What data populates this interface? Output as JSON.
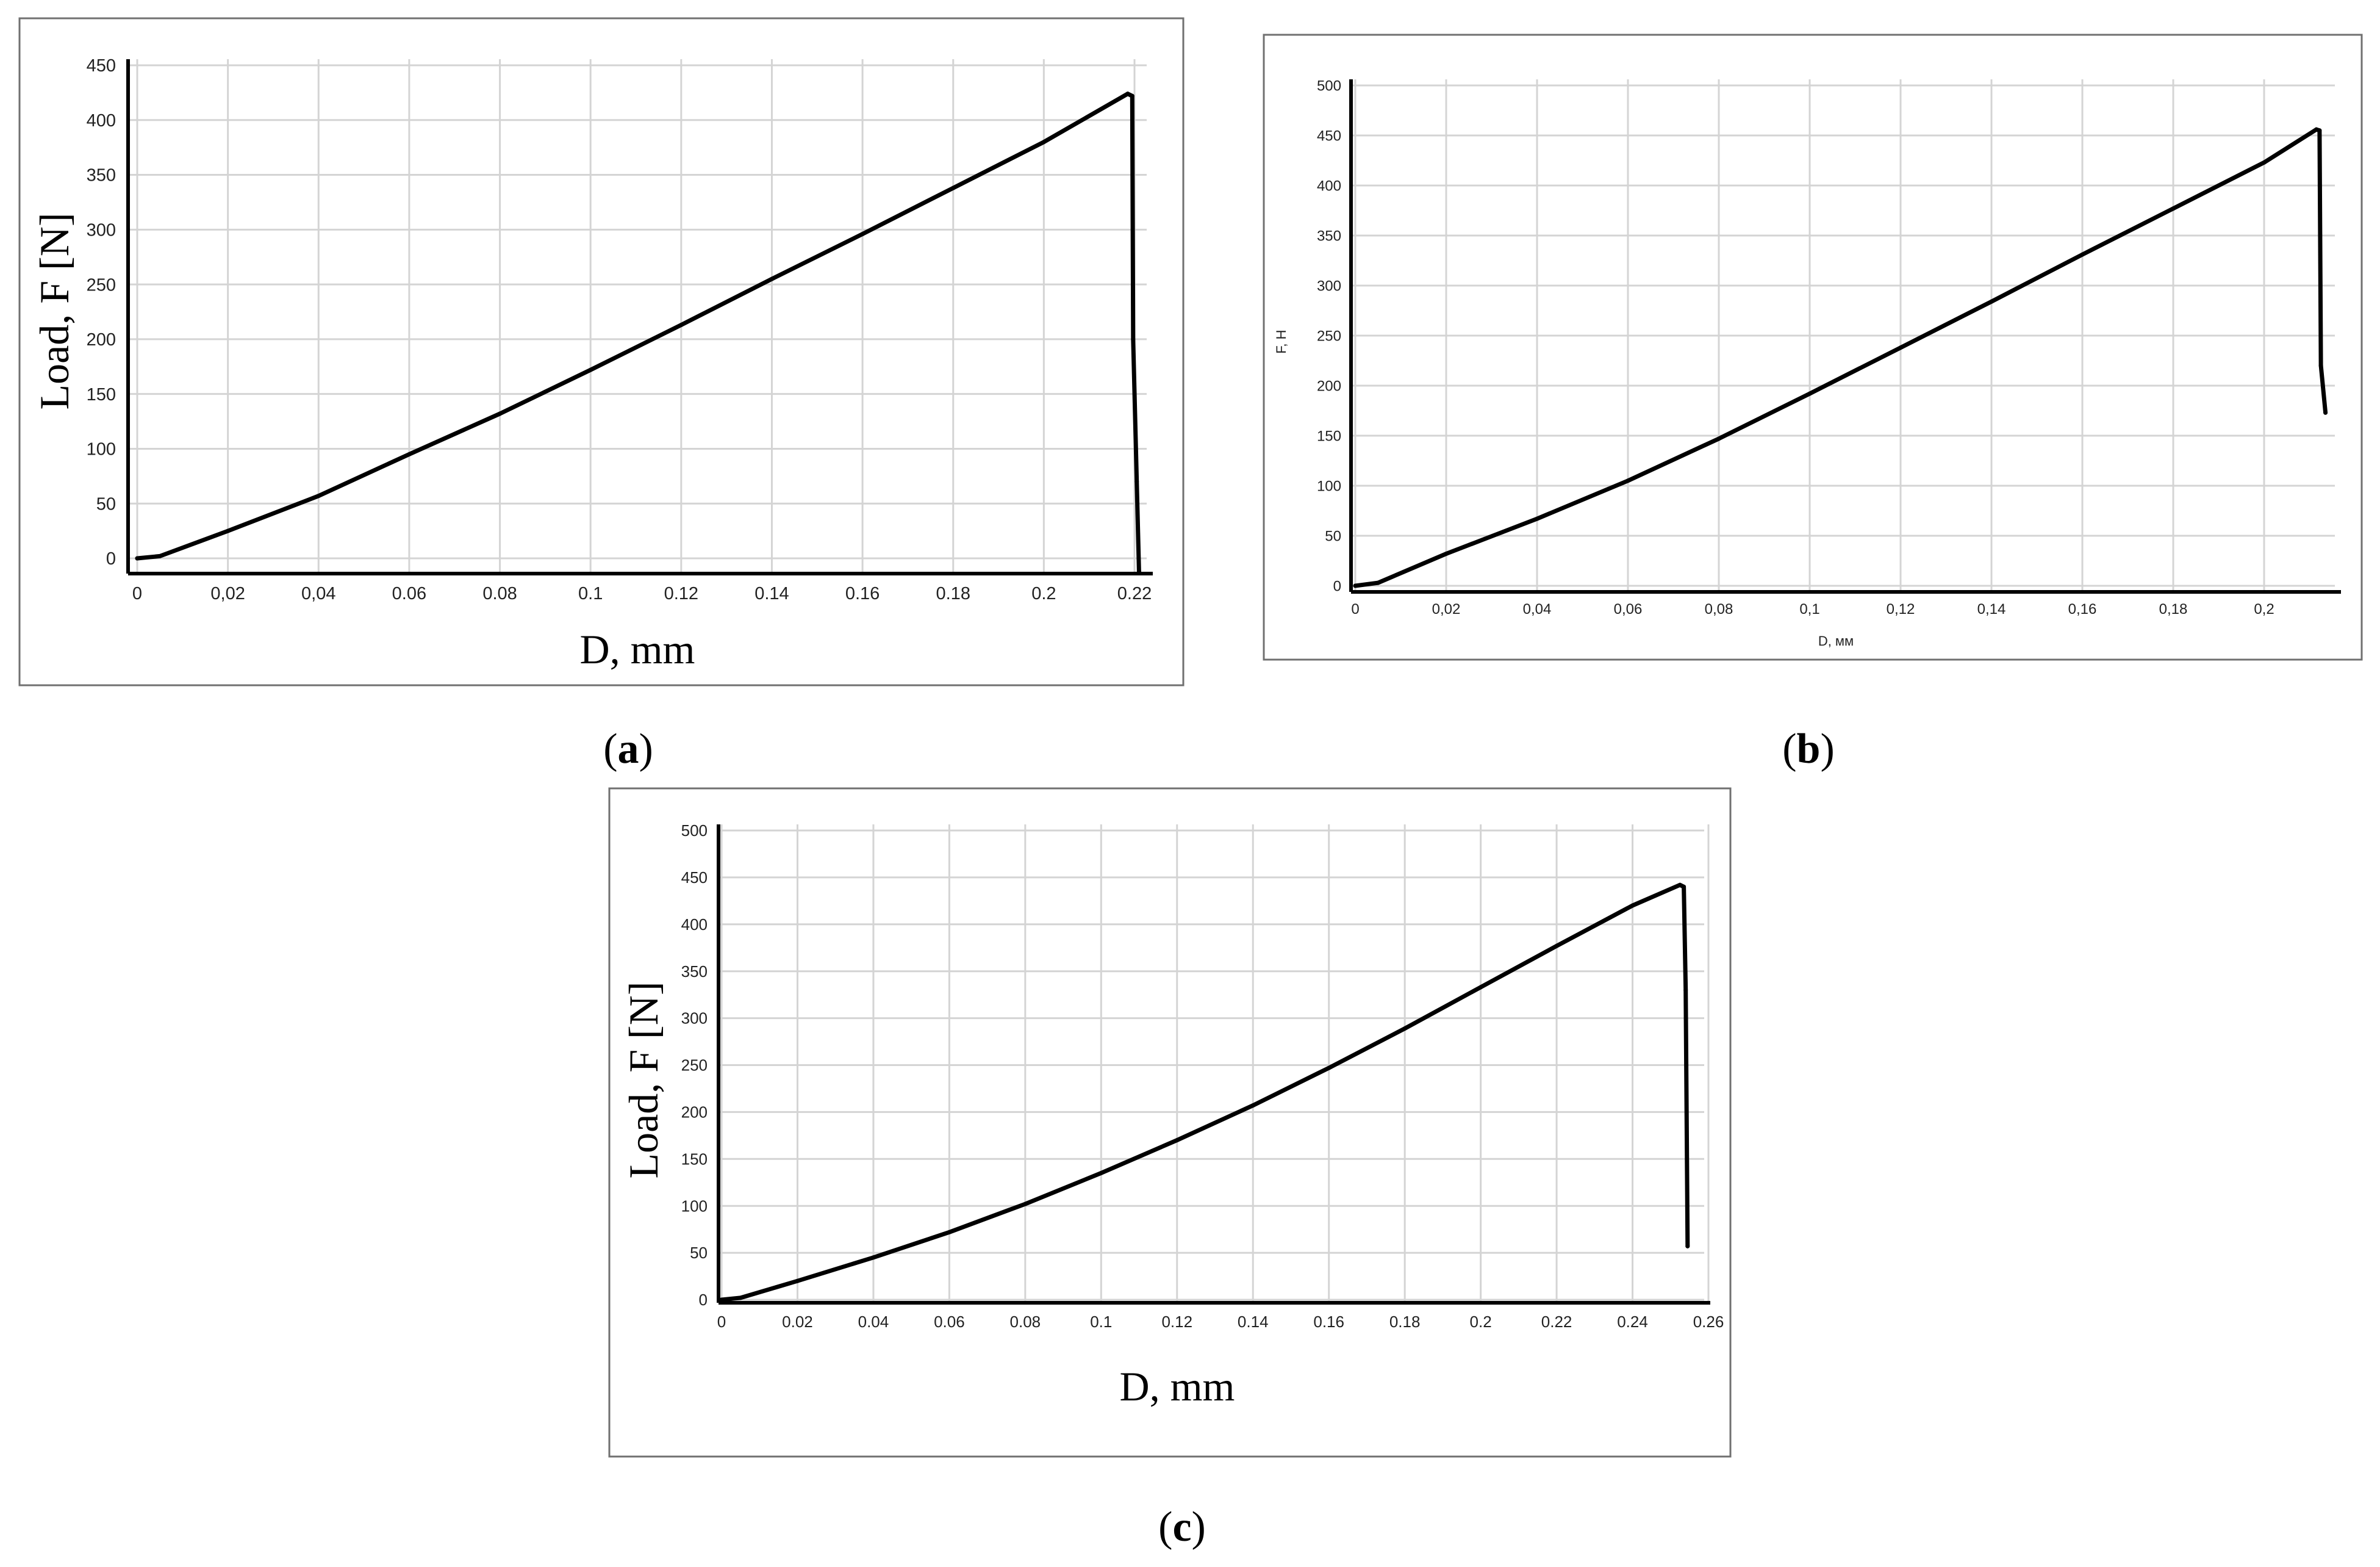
{
  "chart_data": [
    {
      "type": "line",
      "panel_label": "a",
      "xlabel": "D, mm",
      "ylabel": "Load, F [N]",
      "x_ticks": [
        "0",
        "0,02",
        "0,04",
        "0.06",
        "0.08",
        "0.1",
        "0.12",
        "0.14",
        "0.16",
        "0.18",
        "0.2",
        "0.22"
      ],
      "y_ticks": [
        "0",
        "50",
        "100",
        "150",
        "200",
        "250",
        "300",
        "350",
        "400",
        "450"
      ],
      "xlim": [
        0,
        0.22
      ],
      "ylim": [
        0,
        450
      ],
      "grid": true,
      "series": [
        {
          "x": [
            0,
            0.005,
            0.02,
            0.04,
            0.06,
            0.08,
            0.1,
            0.12,
            0.14,
            0.16,
            0.18,
            0.2,
            0.2185,
            0.2195,
            0.2197,
            0.2205,
            0.221
          ],
          "y": [
            0,
            2,
            25,
            57,
            95,
            132,
            172,
            213,
            255,
            296,
            338,
            380,
            424,
            422,
            200,
            70,
            -12
          ]
        }
      ]
    },
    {
      "type": "line",
      "panel_label": "b",
      "xlabel": "D, мм",
      "ylabel": "F, H",
      "x_ticks": [
        "0",
        "0,02",
        "0,04",
        "0,06",
        "0,08",
        "0,1",
        "0,12",
        "0,14",
        "0,16",
        "0,18",
        "0,2"
      ],
      "y_ticks": [
        "0",
        "50",
        "100",
        "150",
        "200",
        "250",
        "300",
        "350",
        "400",
        "450",
        "500"
      ],
      "xlim": [
        0,
        0.22
      ],
      "ylim": [
        0,
        500
      ],
      "grid": true,
      "series": [
        {
          "x": [
            0,
            0.005,
            0.02,
            0.04,
            0.06,
            0.08,
            0.1,
            0.12,
            0.14,
            0.16,
            0.18,
            0.2,
            0.2115,
            0.2122,
            0.2125,
            0.2135
          ],
          "y": [
            0,
            3,
            32,
            67,
            105,
            147,
            192,
            238,
            284,
            331,
            377,
            423,
            456,
            455,
            220,
            173
          ]
        }
      ]
    },
    {
      "type": "line",
      "panel_label": "c",
      "xlabel": "D, mm",
      "ylabel": "Load, F [N]",
      "x_ticks": [
        "0",
        "0.02",
        "0.04",
        "0.06",
        "0.08",
        "0.1",
        "0.12",
        "0.14",
        "0.16",
        "0.18",
        "0.2",
        "0.22",
        "0.24",
        "0.26"
      ],
      "y_ticks": [
        "0",
        "50",
        "100",
        "150",
        "200",
        "250",
        "300",
        "350",
        "400",
        "450",
        "500"
      ],
      "xlim": [
        0,
        0.26
      ],
      "ylim": [
        0,
        500
      ],
      "grid": true,
      "series": [
        {
          "x": [
            0,
            0.005,
            0.02,
            0.04,
            0.06,
            0.08,
            0.1,
            0.12,
            0.14,
            0.16,
            0.18,
            0.2,
            0.22,
            0.24,
            0.2525,
            0.2535,
            0.254,
            0.2545
          ],
          "y": [
            0,
            2,
            20,
            45,
            72,
            102,
            135,
            170,
            207,
            247,
            289,
            333,
            377,
            420,
            442,
            440,
            330,
            57
          ]
        }
      ]
    }
  ]
}
